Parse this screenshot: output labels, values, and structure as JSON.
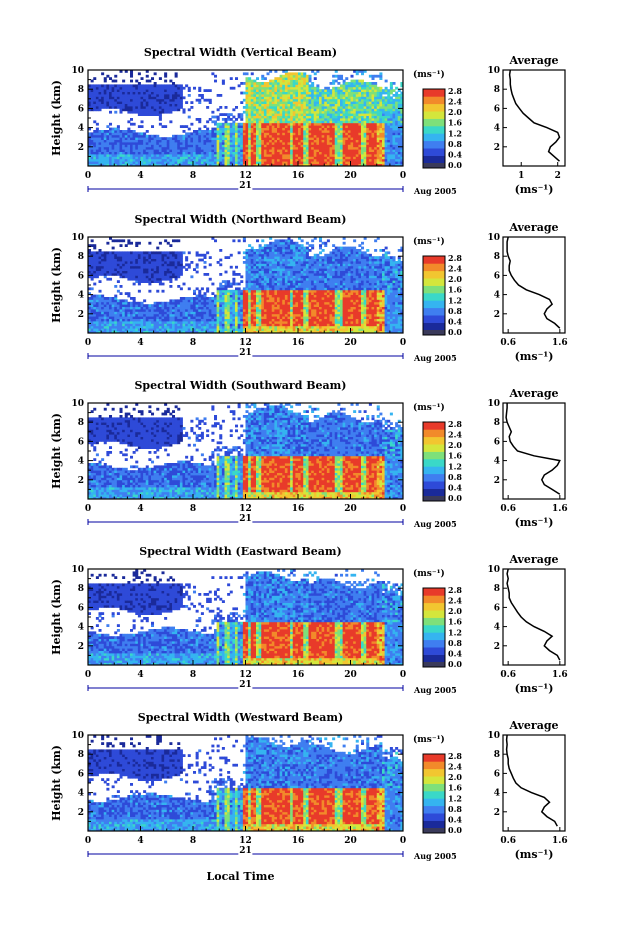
{
  "figure": {
    "xlabel": "Local Time",
    "date_label": "Aug 2005",
    "day_label": "21",
    "x_ticks": [
      "0",
      "4",
      "8",
      "12",
      "16",
      "20",
      "0"
    ],
    "y_ticks": [
      "2",
      "4",
      "6",
      "8",
      "10"
    ],
    "ylabel": "Height (km)",
    "colorbar_label": "(ms⁻¹)",
    "colorbar_ticks": [
      "0.0",
      "0.4",
      "0.8",
      "1.2",
      "1.6",
      "2.0",
      "2.4",
      "2.8"
    ],
    "avg_title": "Average",
    "avg_unit": "(ms⁻¹)",
    "avg_y_ticks": [
      "2",
      "4",
      "6",
      "8",
      "10"
    ]
  },
  "colors": {
    "scale": [
      "#1a2a9a",
      "#2e4ad8",
      "#3f7ef0",
      "#35b4f0",
      "#3ad8c8",
      "#7ee07a",
      "#d4e63c",
      "#f2c630",
      "#f28a2a",
      "#e83a2a"
    ],
    "axis": "#000000",
    "time_axis": "#0000a0"
  },
  "chart_data": [
    {
      "type": "heatmap",
      "title": "Spectral Width (Vertical Beam)",
      "avg_x_ticks": [
        "1",
        "2"
      ],
      "avg_xlim": [
        0.5,
        2.2
      ],
      "average_profile": {
        "height_km": [
          0.5,
          1,
          1.5,
          2,
          2.5,
          3,
          3.5,
          4,
          4.5,
          5,
          5.5,
          6,
          6.5,
          7,
          7.5,
          8,
          8.5,
          9,
          9.5,
          10
        ],
        "width_ms": [
          2.05,
          1.9,
          1.75,
          1.8,
          1.95,
          2.05,
          2.0,
          1.7,
          1.35,
          1.2,
          1.05,
          0.95,
          0.85,
          0.8,
          0.75,
          0.72,
          0.7,
          0.7,
          0.68,
          0.7
        ]
      }
    },
    {
      "type": "heatmap",
      "title": "Spectral Width (Northward Beam)",
      "avg_x_ticks": [
        "0.6",
        "1.6"
      ],
      "avg_xlim": [
        0.5,
        1.7
      ],
      "average_profile": {
        "height_km": [
          0.5,
          1,
          1.5,
          2,
          2.5,
          3,
          3.5,
          4,
          4.5,
          5,
          5.5,
          6,
          6.5,
          7,
          7.5,
          8,
          8.5,
          9,
          9.5,
          10
        ],
        "width_ms": [
          1.6,
          1.5,
          1.35,
          1.3,
          1.35,
          1.45,
          1.4,
          1.2,
          0.95,
          0.8,
          0.72,
          0.66,
          0.62,
          0.62,
          0.64,
          0.6,
          0.58,
          0.58,
          0.58,
          0.6
        ]
      }
    },
    {
      "type": "heatmap",
      "title": "Spectral Width (Southward Beam)",
      "avg_x_ticks": [
        "0.6",
        "1.6"
      ],
      "avg_xlim": [
        0.5,
        1.7
      ],
      "average_profile": {
        "height_km": [
          0.5,
          1,
          1.5,
          2,
          2.5,
          3,
          3.5,
          4,
          4.5,
          5,
          5.5,
          6,
          6.5,
          7,
          7.5,
          8,
          8.5,
          9,
          9.5,
          10
        ],
        "width_ms": [
          1.6,
          1.45,
          1.3,
          1.25,
          1.3,
          1.45,
          1.55,
          1.6,
          1.1,
          0.78,
          0.7,
          0.64,
          0.62,
          0.66,
          0.62,
          0.58,
          0.56,
          0.57,
          0.58,
          0.58
        ]
      }
    },
    {
      "type": "heatmap",
      "title": "Spectral Width (Eastward Beam)",
      "avg_x_ticks": [
        "0.6",
        "1.6"
      ],
      "avg_xlim": [
        0.5,
        1.7
      ],
      "average_profile": {
        "height_km": [
          0.5,
          1,
          1.5,
          2,
          2.5,
          3,
          3.5,
          4,
          4.5,
          5,
          5.5,
          6,
          6.5,
          7,
          7.5,
          8,
          8.5,
          9,
          9.5,
          10
        ],
        "width_ms": [
          1.6,
          1.55,
          1.4,
          1.3,
          1.35,
          1.45,
          1.3,
          1.1,
          0.95,
          0.85,
          0.78,
          0.72,
          0.66,
          0.62,
          0.62,
          0.6,
          0.58,
          0.6,
          0.58,
          0.6
        ]
      }
    },
    {
      "type": "heatmap",
      "title": "Spectral Width (Westward Beam)",
      "avg_x_ticks": [
        "0.6",
        "1.6"
      ],
      "avg_xlim": [
        0.5,
        1.7
      ],
      "average_profile": {
        "height_km": [
          0.5,
          1,
          1.5,
          2,
          2.5,
          3,
          3.5,
          4,
          4.5,
          5,
          5.5,
          6,
          6.5,
          7,
          7.5,
          8,
          8.5,
          9,
          9.5,
          10
        ],
        "width_ms": [
          1.55,
          1.5,
          1.35,
          1.25,
          1.3,
          1.4,
          1.3,
          1.05,
          0.85,
          0.75,
          0.7,
          0.66,
          0.62,
          0.6,
          0.6,
          0.58,
          0.57,
          0.58,
          0.57,
          0.58
        ]
      }
    }
  ]
}
